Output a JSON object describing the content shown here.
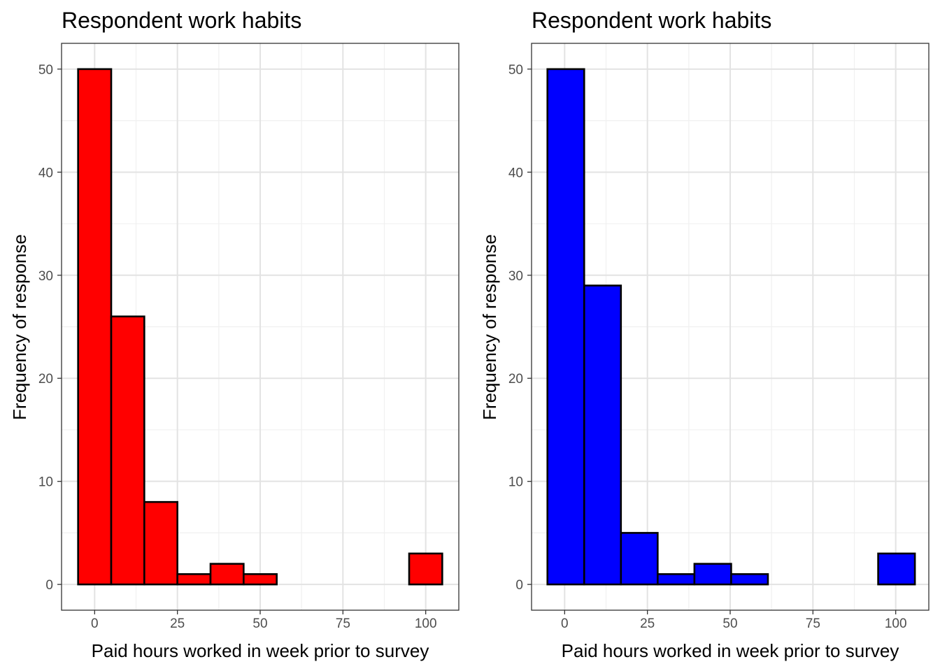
{
  "chart_data": [
    {
      "type": "histogram",
      "title": "Respondent work habits",
      "xlabel": "Paid hours worked in week prior to survey",
      "ylabel": "Frequency of response",
      "fill_color": "#ff0000",
      "bin_edges": [
        -5,
        5,
        15,
        25,
        35,
        45,
        55,
        65,
        75,
        85,
        95,
        105
      ],
      "values": [
        50,
        26,
        8,
        1,
        2,
        1,
        0,
        0,
        0,
        0,
        3
      ],
      "xlim": [
        -10,
        110
      ],
      "ylim": [
        -2.5,
        52.5
      ],
      "xticks": [
        0,
        25,
        50,
        75,
        100
      ],
      "xtick_labels": [
        "0",
        "25",
        "50",
        "75",
        "100"
      ],
      "yticks": [
        0,
        10,
        20,
        30,
        40,
        50
      ],
      "ytick_labels": [
        "0",
        "10",
        "20",
        "30",
        "40",
        "50"
      ],
      "grid": true
    },
    {
      "type": "histogram",
      "title": "Respondent work habits",
      "xlabel": "Paid hours worked in week prior to survey",
      "ylabel": "Frequency of response",
      "fill_color": "#0000ff",
      "bin_edges": [
        -5.2,
        5.9,
        17.0,
        28.1,
        39.2,
        50.3,
        61.4,
        72.5,
        83.6,
        94.7,
        105.8
      ],
      "values": [
        50,
        29,
        5,
        1,
        2,
        1,
        0,
        0,
        0,
        3
      ],
      "xlim": [
        -10,
        110
      ],
      "ylim": [
        -2.5,
        52.5
      ],
      "xticks": [
        0,
        25,
        50,
        75,
        100
      ],
      "xtick_labels": [
        "0",
        "25",
        "50",
        "75",
        "100"
      ],
      "yticks": [
        0,
        10,
        20,
        30,
        40,
        50
      ],
      "ytick_labels": [
        "0",
        "10",
        "20",
        "30",
        "40",
        "50"
      ],
      "grid": true
    }
  ]
}
